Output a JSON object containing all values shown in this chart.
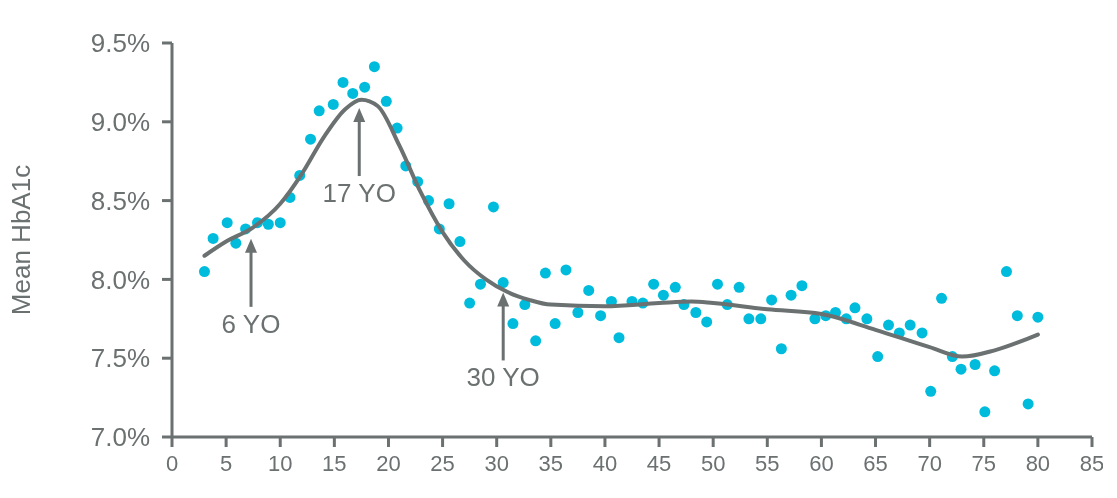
{
  "chart_data": {
    "type": "scatter",
    "ylabel": "Mean HbA1c",
    "xlim": [
      0,
      85
    ],
    "xticks": [
      0,
      5,
      10,
      15,
      20,
      25,
      30,
      35,
      40,
      45,
      50,
      55,
      60,
      65,
      70,
      75,
      80,
      85
    ],
    "ylim": [
      7.0,
      9.5
    ],
    "yticks": [
      {
        "value": 7.0,
        "label": "7.0%"
      },
      {
        "value": 7.5,
        "label": "7.5%"
      },
      {
        "value": 8.0,
        "label": "8.0%"
      },
      {
        "value": 8.5,
        "label": "8.5%"
      },
      {
        "value": 9.0,
        "label": "9.0%"
      },
      {
        "value": 9.5,
        "label": "9.5%"
      }
    ],
    "grid": false,
    "series": [
      {
        "color": "#00bcdc",
        "marker": "circle",
        "x": [
          3.0,
          3.8,
          5.1,
          5.9,
          6.8,
          7.9,
          8.9,
          10.0,
          10.9,
          11.8,
          12.8,
          13.6,
          14.9,
          15.8,
          16.7,
          17.8,
          18.7,
          19.8,
          20.8,
          21.6,
          22.7,
          23.7,
          24.7,
          25.6,
          26.6,
          27.5,
          28.5,
          29.7,
          30.6,
          31.5,
          32.6,
          33.6,
          34.5,
          35.4,
          36.4,
          37.5,
          38.5,
          39.6,
          40.6,
          41.3,
          42.5,
          43.5,
          44.5,
          45.4,
          46.5,
          47.3,
          48.4,
          49.4,
          50.4,
          51.3,
          52.4,
          53.3,
          54.4,
          55.4,
          56.3,
          57.2,
          58.2,
          59.4,
          60.4,
          61.3,
          62.3,
          63.1,
          64.2,
          65.2,
          66.2,
          67.2,
          68.2,
          69.3,
          70.1,
          71.1,
          72.1,
          72.9,
          74.2,
          75.1,
          76.0,
          77.1,
          78.1,
          79.1,
          80.0
        ],
        "values": [
          8.05,
          8.26,
          8.36,
          8.23,
          8.32,
          8.36,
          8.35,
          8.36,
          8.52,
          8.66,
          8.89,
          9.07,
          9.11,
          9.25,
          9.18,
          9.22,
          9.35,
          9.13,
          8.96,
          8.72,
          8.62,
          8.5,
          8.32,
          8.48,
          8.24,
          7.85,
          7.97,
          8.46,
          7.98,
          7.72,
          7.84,
          7.61,
          8.04,
          7.72,
          8.06,
          7.79,
          7.93,
          7.77,
          7.86,
          7.63,
          7.86,
          7.85,
          7.97,
          7.9,
          7.95,
          7.84,
          7.79,
          7.73,
          7.97,
          7.84,
          7.95,
          7.75,
          7.75,
          7.87,
          7.56,
          7.9,
          7.96,
          7.75,
          7.77,
          7.79,
          7.75,
          7.82,
          7.75,
          7.51,
          7.71,
          7.66,
          7.71,
          7.66,
          7.29,
          7.88,
          7.51,
          7.43,
          7.46,
          7.16,
          7.42,
          8.05,
          7.77,
          7.21,
          7.76
        ]
      },
      {
        "type": "line",
        "color": "#6b7071",
        "marker": "none",
        "line_style": "solid",
        "x": [
          3,
          5,
          7.5,
          10,
          12,
          14,
          16,
          17.5,
          19,
          21,
          23,
          25,
          27,
          29,
          31,
          33,
          35,
          40,
          45,
          48,
          50,
          55,
          60,
          65,
          70,
          73,
          76,
          80
        ],
        "values": [
          8.15,
          8.24,
          8.33,
          8.48,
          8.67,
          8.9,
          9.08,
          9.14,
          9.1,
          8.85,
          8.55,
          8.3,
          8.12,
          8.0,
          7.92,
          7.87,
          7.84,
          7.83,
          7.85,
          7.86,
          7.85,
          7.81,
          7.78,
          7.68,
          7.57,
          7.51,
          7.55,
          7.65
        ]
      }
    ],
    "annotations": [
      {
        "text": "6 YO",
        "x": 7.3,
        "y": 8.27
      },
      {
        "text": "17 YO",
        "x": 17.3,
        "y": 9.1
      },
      {
        "text": "30 YO",
        "x": 30.6,
        "y": 7.93
      }
    ]
  }
}
